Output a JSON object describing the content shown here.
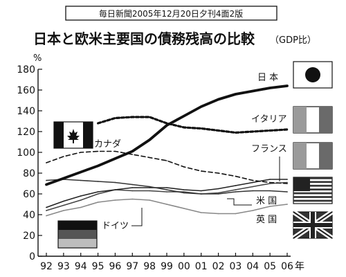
{
  "source_label": "毎日新聞2005年12月20日夕刊4面2版",
  "chart_data": {
    "type": "line",
    "title": "日本と欧米主要国の債務残高の比較",
    "subtitle": "（GDP比）",
    "y_unit": "%",
    "ylim": [
      0,
      180
    ],
    "yticks": [
      0,
      20,
      40,
      60,
      80,
      100,
      120,
      140,
      160,
      180
    ],
    "x": [
      "92",
      "93",
      "94",
      "95",
      "96",
      "97",
      "98",
      "99",
      "00",
      "01",
      "02",
      "03",
      "04",
      "05",
      "06"
    ],
    "x_unit": "年",
    "grid": false,
    "series": [
      {
        "name": "日 本",
        "style": "thick",
        "color": "#111111",
        "values": [
          69,
          75,
          81,
          87,
          94,
          101,
          112,
          126,
          135,
          144,
          151,
          156,
          159,
          162,
          164
        ]
      },
      {
        "name": "イタリア",
        "style": "dotted",
        "color": "#111111",
        "values": [
          null,
          null,
          null,
          128,
          133,
          134,
          134,
          128,
          124,
          123,
          121,
          119,
          120,
          121,
          122
        ]
      },
      {
        "name": "カナダ",
        "style": "dashed",
        "color": "#111111",
        "values": [
          90,
          96,
          100,
          101,
          101,
          98,
          95,
          92,
          86,
          82,
          80,
          77,
          73,
          71,
          70
        ]
      },
      {
        "name": "フランス",
        "style": "solid",
        "color": "#222222",
        "values": [
          47,
          53,
          58,
          62,
          64,
          66,
          66,
          66,
          64,
          63,
          65,
          68,
          71,
          74,
          74
        ]
      },
      {
        "name": "米 国",
        "style": "solid",
        "color": "#333333",
        "values": [
          73,
          74,
          73,
          72,
          71,
          69,
          67,
          64,
          61,
          60,
          60,
          62,
          63,
          63,
          62
        ]
      },
      {
        "name": "ドイツ",
        "style": "solid",
        "color": "#444444",
        "values": [
          44,
          49,
          54,
          60,
          64,
          63,
          63,
          62,
          62,
          60,
          61,
          64,
          67,
          70,
          71
        ]
      },
      {
        "name": "英 国",
        "style": "solid",
        "color": "#888888",
        "values": [
          39,
          44,
          47,
          52,
          54,
          55,
          54,
          50,
          46,
          42,
          41,
          41,
          44,
          48,
          50
        ]
      }
    ]
  }
}
